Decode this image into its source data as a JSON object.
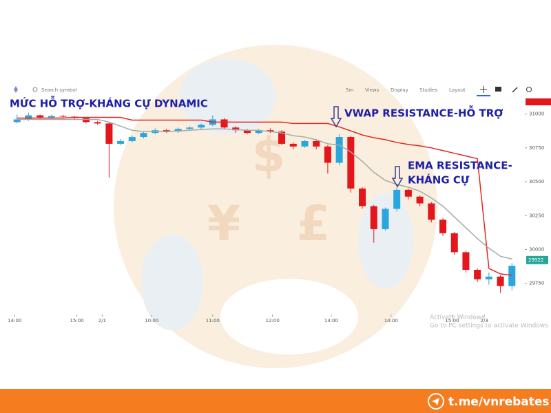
{
  "toolbar": {
    "search": "Search symbol",
    "items": [
      "5m",
      "Views",
      "Display",
      "Studies",
      "Layout"
    ]
  },
  "chart_data": {
    "type": "candlestick",
    "annotations": [
      "MỨC HỖ TRỢ-KHÁNG CỰ DYNAMIC",
      "VWAP RESISTANCE-HỖ TRỢ",
      "EMA RESISTANCE-",
      "KHÁNG CỰ"
    ],
    "x": [
      1,
      2,
      3,
      4,
      5,
      6,
      7,
      8,
      9,
      10,
      11,
      12,
      13,
      14,
      15,
      16,
      17,
      18,
      19,
      20,
      21,
      22,
      23,
      24,
      25,
      26,
      27,
      28,
      29,
      30,
      31,
      32,
      33,
      34,
      35,
      36,
      37,
      38,
      39,
      40,
      41,
      42,
      43,
      44
    ],
    "open": [
      30940,
      30960,
      30990,
      30975,
      30985,
      30980,
      30970,
      30940,
      30930,
      30780,
      30800,
      30830,
      30860,
      30880,
      30870,
      30890,
      30900,
      30920,
      30960,
      30900,
      30880,
      30860,
      30880,
      30870,
      30780,
      30760,
      30800,
      30760,
      30640,
      30830,
      30450,
      30320,
      30150,
      30300,
      30440,
      30390,
      30340,
      30220,
      30120,
      29980,
      29850,
      29780,
      29800,
      29730
    ],
    "high": [
      30995,
      31010,
      30995,
      30995,
      30995,
      30985,
      30975,
      30950,
      30935,
      30815,
      30840,
      30870,
      30895,
      30890,
      30900,
      30910,
      30930,
      30990,
      30970,
      30910,
      30890,
      30890,
      30895,
      30880,
      30790,
      30810,
      30810,
      30770,
      30850,
      30840,
      30460,
      30330,
      30310,
      30460,
      30450,
      30400,
      30350,
      30230,
      30130,
      29990,
      29860,
      29830,
      29810,
      29900
    ],
    "low": [
      30930,
      30950,
      30965,
      30965,
      30970,
      30960,
      30930,
      30920,
      30530,
      30770,
      30790,
      30820,
      30850,
      30860,
      30860,
      30880,
      30890,
      30910,
      30890,
      30860,
      30850,
      30850,
      30860,
      30770,
      30740,
      30750,
      30740,
      30560,
      30620,
      30420,
      30300,
      30050,
      30140,
      30280,
      30370,
      30320,
      30200,
      30100,
      29960,
      29830,
      29760,
      29740,
      29680,
      29700
    ],
    "close": [
      30960,
      30990,
      30975,
      30985,
      30980,
      30970,
      30940,
      30930,
      30780,
      30800,
      30830,
      30860,
      30880,
      30870,
      30890,
      30900,
      30920,
      30960,
      30900,
      30880,
      30860,
      30880,
      30870,
      30780,
      30760,
      30800,
      30760,
      30640,
      30830,
      30450,
      30320,
      30150,
      30300,
      30440,
      30390,
      30340,
      30220,
      30120,
      29980,
      29850,
      29780,
      29800,
      29730,
      29880
    ],
    "up_color": "#2aa6de",
    "down_color": "#e3161c",
    "lines": [
      {
        "color": "#e52521",
        "values": [
          30970,
          30970,
          30970,
          30970,
          30970,
          30975,
          30975,
          30975,
          30975,
          30975,
          30955,
          30955,
          30955,
          30955,
          30955,
          30955,
          30955,
          30940,
          30940,
          30940,
          30940,
          30940,
          30940,
          30940,
          30930,
          30930,
          30930,
          30930,
          30905,
          30875,
          30845,
          30825,
          30810,
          30790,
          30775,
          30765,
          30750,
          30730,
          30710,
          30690,
          30670,
          29860,
          29820,
          29810
        ]
      },
      {
        "color": "#a3aba7",
        "values": [
          30960,
          30960,
          30960,
          30960,
          30960,
          30960,
          30960,
          30960,
          30940,
          30910,
          30880,
          30870,
          30870,
          30870,
          30875,
          30880,
          30885,
          30890,
          30890,
          30885,
          30880,
          30880,
          30870,
          30860,
          30840,
          30830,
          30810,
          30780,
          30770,
          30720,
          30650,
          30570,
          30510,
          30480,
          30460,
          30430,
          30380,
          30320,
          30240,
          30160,
          30080,
          30010,
          29950,
          29930
        ]
      }
    ],
    "xlim": [
      0,
      45
    ],
    "xticks": [
      {
        "value": 0.8,
        "label": "14:00"
      },
      {
        "value": 6.2,
        "label": "15:00"
      },
      {
        "value": 8.4,
        "label": "2/1"
      },
      {
        "value": 12.7,
        "label": "10:00"
      },
      {
        "value": 18.0,
        "label": "11:00"
      },
      {
        "value": 23.2,
        "label": "12:00"
      },
      {
        "value": 28.3,
        "label": "13:00"
      },
      {
        "value": 33.5,
        "label": "14:00"
      },
      {
        "value": 38.8,
        "label": "15:00"
      },
      {
        "value": 41.6,
        "label": "2/3"
      }
    ],
    "ylim": [
      29530,
      31130
    ],
    "yticks": [
      31000,
      30750,
      30500,
      30250,
      30000,
      29750
    ],
    "last_price": 29922,
    "last_price_color": "#26a69a",
    "grid": false
  },
  "watermark": [
    "Activate Windows",
    "Go to PC settings to activate Windows"
  ],
  "footer": "t.me/vnrebates"
}
